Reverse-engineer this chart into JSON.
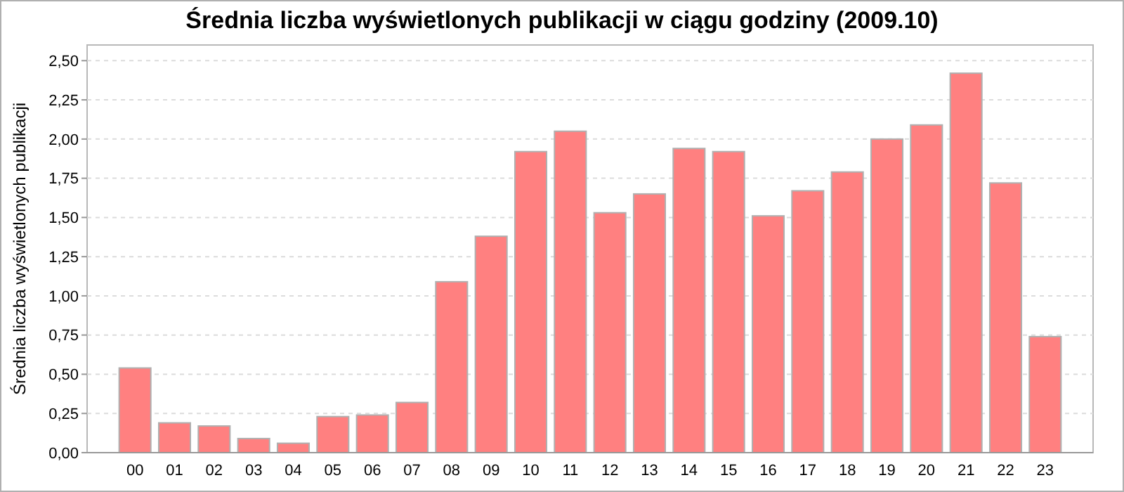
{
  "chart_data": {
    "type": "bar",
    "title": "Średnia liczba wyświetlonych publikacji w ciągu godziny (2009.10)",
    "ylabel": "Średnia liczba wyświetlonych publikacji",
    "categories": [
      "00",
      "01",
      "02",
      "03",
      "04",
      "05",
      "06",
      "07",
      "08",
      "09",
      "10",
      "11",
      "12",
      "13",
      "14",
      "15",
      "16",
      "17",
      "18",
      "19",
      "20",
      "21",
      "22",
      "23"
    ],
    "values": [
      0.54,
      0.19,
      0.17,
      0.09,
      0.06,
      0.23,
      0.24,
      0.32,
      1.09,
      1.38,
      1.92,
      2.05,
      1.53,
      1.65,
      1.94,
      1.92,
      1.51,
      1.67,
      1.79,
      2.0,
      2.09,
      2.42,
      1.72,
      0.74
    ],
    "color": "#ff8080",
    "ylim": [
      0,
      2.6
    ],
    "yticks": [
      {
        "value": 0,
        "label": "0,00"
      },
      {
        "value": 0.25,
        "label": "0,25"
      },
      {
        "value": 0.5,
        "label": "0,50"
      },
      {
        "value": 0.75,
        "label": "0,75"
      },
      {
        "value": 1,
        "label": "1,00"
      },
      {
        "value": 1.25,
        "label": "1,25"
      },
      {
        "value": 1.5,
        "label": "1,50"
      },
      {
        "value": 1.75,
        "label": "1,75"
      },
      {
        "value": 2,
        "label": "2,00"
      },
      {
        "value": 2.25,
        "label": "2,25"
      },
      {
        "value": 2.5,
        "label": "2,50"
      }
    ],
    "grid": "y"
  }
}
